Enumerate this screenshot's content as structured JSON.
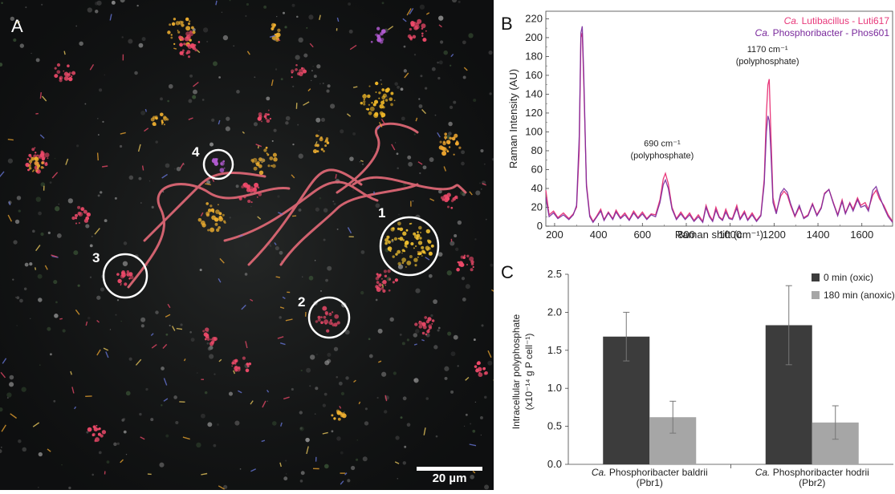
{
  "panel_a": {
    "letter": "A",
    "annotations": [
      "1",
      "2",
      "3",
      "4"
    ],
    "scale_bar": "20 µm"
  },
  "chart_data": [
    {
      "panel": "B",
      "type": "line",
      "xlabel": "Raman shift (cm⁻¹)",
      "ylabel": "Raman Intensity (AU)",
      "xlim": [
        160,
        1740
      ],
      "ylim": [
        0,
        228
      ],
      "xticks": [
        200,
        400,
        600,
        800,
        1000,
        1200,
        1400,
        1600
      ],
      "yticks": [
        0,
        20,
        40,
        60,
        80,
        100,
        120,
        140,
        160,
        180,
        200,
        220
      ],
      "legend_position": "top-right",
      "annotations": [
        {
          "line1": "690 cm⁻¹",
          "line2": "(polyphosphate)",
          "x": 690,
          "y": 72
        },
        {
          "line1": "1170 cm⁻¹",
          "line2": "(polyphosphate)",
          "x": 1170,
          "y": 172
        }
      ],
      "series": [
        {
          "name": "Ca. Lutibacillus - Luti617",
          "name_italic": "Ca.",
          "name_rest": " Lutibacillus - Luti617",
          "color": "#e8387a",
          "points": [
            [
              160,
              38
            ],
            [
              175,
              12
            ],
            [
              195,
              16
            ],
            [
              215,
              9
            ],
            [
              240,
              14
            ],
            [
              265,
              8
            ],
            [
              285,
              13
            ],
            [
              300,
              20
            ],
            [
              312,
              80
            ],
            [
              320,
              200
            ],
            [
              326,
              205
            ],
            [
              333,
              150
            ],
            [
              345,
              45
            ],
            [
              360,
              12
            ],
            [
              375,
              5
            ],
            [
              390,
              10
            ],
            [
              410,
              18
            ],
            [
              425,
              7
            ],
            [
              445,
              15
            ],
            [
              465,
              8
            ],
            [
              480,
              17
            ],
            [
              500,
              9
            ],
            [
              520,
              14
            ],
            [
              540,
              7
            ],
            [
              560,
              16
            ],
            [
              580,
              9
            ],
            [
              600,
              15
            ],
            [
              620,
              8
            ],
            [
              640,
              13
            ],
            [
              660,
              12
            ],
            [
              680,
              28
            ],
            [
              695,
              50
            ],
            [
              705,
              56
            ],
            [
              718,
              45
            ],
            [
              735,
              20
            ],
            [
              755,
              8
            ],
            [
              775,
              15
            ],
            [
              795,
              8
            ],
            [
              815,
              14
            ],
            [
              835,
              6
            ],
            [
              855,
              12
            ],
            [
              875,
              5
            ],
            [
              890,
              22
            ],
            [
              905,
              12
            ],
            [
              920,
              6
            ],
            [
              935,
              20
            ],
            [
              950,
              10
            ],
            [
              965,
              7
            ],
            [
              980,
              18
            ],
            [
              995,
              9
            ],
            [
              1010,
              8
            ],
            [
              1030,
              22
            ],
            [
              1045,
              8
            ],
            [
              1065,
              16
            ],
            [
              1080,
              7
            ],
            [
              1100,
              14
            ],
            [
              1120,
              6
            ],
            [
              1140,
              12
            ],
            [
              1155,
              50
            ],
            [
              1165,
              120
            ],
            [
              1172,
              150
            ],
            [
              1178,
              156
            ],
            [
              1185,
              100
            ],
            [
              1195,
              30
            ],
            [
              1210,
              15
            ],
            [
              1230,
              32
            ],
            [
              1245,
              37
            ],
            [
              1260,
              33
            ],
            [
              1275,
              22
            ],
            [
              1295,
              10
            ],
            [
              1315,
              20
            ],
            [
              1335,
              9
            ],
            [
              1355,
              12
            ],
            [
              1375,
              24
            ],
            [
              1395,
              12
            ],
            [
              1415,
              20
            ],
            [
              1430,
              35
            ],
            [
              1450,
              39
            ],
            [
              1470,
              25
            ],
            [
              1490,
              12
            ],
            [
              1510,
              28
            ],
            [
              1525,
              14
            ],
            [
              1545,
              25
            ],
            [
              1560,
              18
            ],
            [
              1580,
              30
            ],
            [
              1595,
              22
            ],
            [
              1615,
              25
            ],
            [
              1630,
              18
            ],
            [
              1650,
              33
            ],
            [
              1665,
              38
            ],
            [
              1680,
              29
            ],
            [
              1700,
              22
            ],
            [
              1720,
              12
            ],
            [
              1740,
              5
            ]
          ]
        },
        {
          "name": "Ca. Phosphoribacter - Phos601",
          "name_italic": "Ca.",
          "name_rest": " Phosphoribacter - Phos601",
          "color": "#7a2a9c",
          "points": [
            [
              160,
              30
            ],
            [
              175,
              10
            ],
            [
              195,
              14
            ],
            [
              215,
              8
            ],
            [
              240,
              12
            ],
            [
              265,
              7
            ],
            [
              285,
              12
            ],
            [
              300,
              22
            ],
            [
              312,
              95
            ],
            [
              320,
              205
            ],
            [
              326,
              212
            ],
            [
              333,
              160
            ],
            [
              345,
              42
            ],
            [
              360,
              10
            ],
            [
              375,
              4
            ],
            [
              390,
              9
            ],
            [
              410,
              16
            ],
            [
              425,
              6
            ],
            [
              445,
              14
            ],
            [
              465,
              7
            ],
            [
              480,
              15
            ],
            [
              500,
              8
            ],
            [
              520,
              12
            ],
            [
              540,
              6
            ],
            [
              560,
              14
            ],
            [
              580,
              8
            ],
            [
              600,
              13
            ],
            [
              620,
              7
            ],
            [
              640,
              12
            ],
            [
              660,
              10
            ],
            [
              680,
              25
            ],
            [
              695,
              44
            ],
            [
              705,
              49
            ],
            [
              718,
              40
            ],
            [
              735,
              18
            ],
            [
              755,
              7
            ],
            [
              775,
              13
            ],
            [
              795,
              7
            ],
            [
              815,
              12
            ],
            [
              835,
              5
            ],
            [
              855,
              10
            ],
            [
              875,
              4
            ],
            [
              890,
              20
            ],
            [
              905,
              10
            ],
            [
              920,
              5
            ],
            [
              935,
              17
            ],
            [
              950,
              9
            ],
            [
              965,
              6
            ],
            [
              980,
              15
            ],
            [
              995,
              8
            ],
            [
              1010,
              7
            ],
            [
              1030,
              19
            ],
            [
              1045,
              7
            ],
            [
              1065,
              14
            ],
            [
              1080,
              6
            ],
            [
              1100,
              12
            ],
            [
              1120,
              5
            ],
            [
              1140,
              11
            ],
            [
              1155,
              45
            ],
            [
              1165,
              100
            ],
            [
              1172,
              117
            ],
            [
              1178,
              112
            ],
            [
              1185,
              80
            ],
            [
              1195,
              25
            ],
            [
              1210,
              13
            ],
            [
              1230,
              35
            ],
            [
              1245,
              40
            ],
            [
              1260,
              36
            ],
            [
              1275,
              24
            ],
            [
              1295,
              11
            ],
            [
              1315,
              22
            ],
            [
              1335,
              8
            ],
            [
              1355,
              11
            ],
            [
              1375,
              23
            ],
            [
              1395,
              11
            ],
            [
              1415,
              19
            ],
            [
              1430,
              34
            ],
            [
              1450,
              39
            ],
            [
              1470,
              24
            ],
            [
              1490,
              11
            ],
            [
              1510,
              26
            ],
            [
              1525,
              13
            ],
            [
              1545,
              24
            ],
            [
              1560,
              16
            ],
            [
              1580,
              28
            ],
            [
              1595,
              20
            ],
            [
              1615,
              22
            ],
            [
              1630,
              16
            ],
            [
              1650,
              38
            ],
            [
              1665,
              42
            ],
            [
              1680,
              32
            ],
            [
              1700,
              20
            ],
            [
              1720,
              10
            ],
            [
              1740,
              4
            ]
          ]
        }
      ]
    },
    {
      "panel": "C",
      "type": "bar",
      "ylabel_line1": "Intracellular polyphosphate",
      "ylabel_line2": "(x10⁻¹⁴ g P cell⁻¹)",
      "ylim": [
        0,
        2.5
      ],
      "yticks": [
        "0.0",
        "0.5",
        "1.0",
        "1.5",
        "2.0",
        "2.5"
      ],
      "legend_position": "top-right",
      "categories": [
        {
          "italic": "Ca.",
          "rest": " Phosphoribacter baldrii",
          "line2": "(Pbr1)"
        },
        {
          "italic": "Ca.",
          "rest": " Phosphoribacter hodrii",
          "line2": "(Pbr2)"
        }
      ],
      "series": [
        {
          "name": "0 min (oxic)",
          "color": "#3c3c3c",
          "values": [
            1.68,
            1.83
          ],
          "errors": [
            0.32,
            0.52
          ]
        },
        {
          "name": "180 min (anoxic)",
          "color": "#a6a6a6",
          "values": [
            0.62,
            0.55
          ],
          "errors": [
            0.21,
            0.22
          ]
        }
      ]
    }
  ]
}
